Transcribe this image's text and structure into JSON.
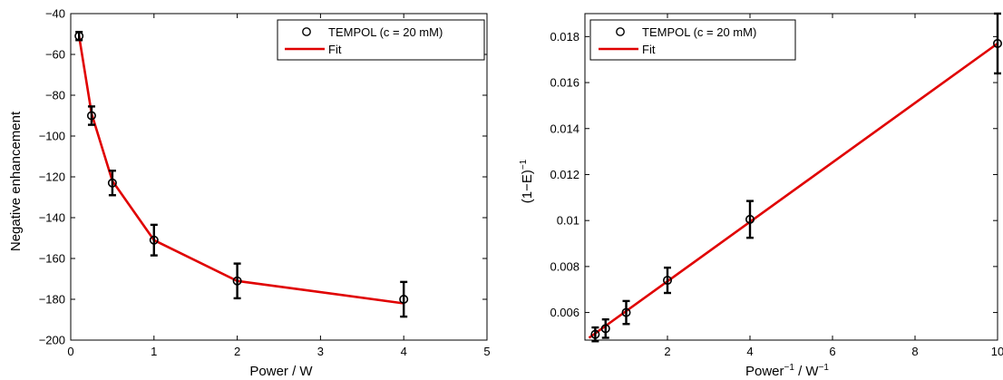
{
  "colors": {
    "data": "#000000",
    "fit": "#e00000",
    "axes": "#000000"
  },
  "chart_data": [
    {
      "type": "scatter",
      "xlabel": "Power / W",
      "ylabel": "Negative enhancement",
      "xlim": [
        0,
        5
      ],
      "ylim": [
        -200,
        -40
      ],
      "xticks": [
        0,
        1,
        2,
        3,
        4,
        5
      ],
      "yticks": [
        -200,
        -180,
        -160,
        -140,
        -120,
        -100,
        -80,
        -60,
        -40
      ],
      "grid": false,
      "legend_position": "top-right",
      "series": [
        {
          "name": "TEMPOL (c = 20 mM)",
          "kind": "markers-errorbars",
          "x": [
            0.1,
            0.25,
            0.5,
            1,
            2,
            4
          ],
          "y": [
            -51,
            -90,
            -123,
            -151,
            -171,
            -180
          ],
          "err": [
            2,
            4.5,
            6,
            7.5,
            8.5,
            8.5
          ]
        },
        {
          "name": "Fit",
          "kind": "line",
          "x": [
            0.1,
            0.25,
            0.5,
            1,
            2,
            4
          ],
          "y": [
            -51,
            -89,
            -122,
            -151,
            -171,
            -182
          ]
        }
      ]
    },
    {
      "type": "scatter",
      "xlabel": "Power",
      "xlabel_sup": "−1",
      "xlabel_mid": " / W",
      "xlabel_sup2": "−1",
      "ylabel": "(1−E)",
      "ylabel_sup": "−1",
      "xlim": [
        0,
        10
      ],
      "ylim": [
        0.0048,
        0.019
      ],
      "xticks": [
        2,
        4,
        6,
        8,
        10
      ],
      "yticks": [
        0.006,
        0.008,
        0.01,
        0.012,
        0.014,
        0.016,
        0.018
      ],
      "ytick_labels": [
        "0.006",
        "0.008",
        "0.01",
        "0.012",
        "0.014",
        "0.016",
        "0.018"
      ],
      "grid": false,
      "legend_position": "top-left",
      "series": [
        {
          "name": "TEMPOL (c = 20 mM)",
          "kind": "markers-errorbars",
          "x": [
            0.25,
            0.5,
            1,
            2,
            4,
            10
          ],
          "y": [
            0.00505,
            0.0053,
            0.006,
            0.0074,
            0.01005,
            0.0177
          ],
          "err": [
            0.0003,
            0.0004,
            0.0005,
            0.00055,
            0.0008,
            0.0013
          ]
        },
        {
          "name": "Fit",
          "kind": "line",
          "x": [
            0.1,
            10
          ],
          "y": [
            0.0049,
            0.0177
          ]
        }
      ]
    }
  ]
}
